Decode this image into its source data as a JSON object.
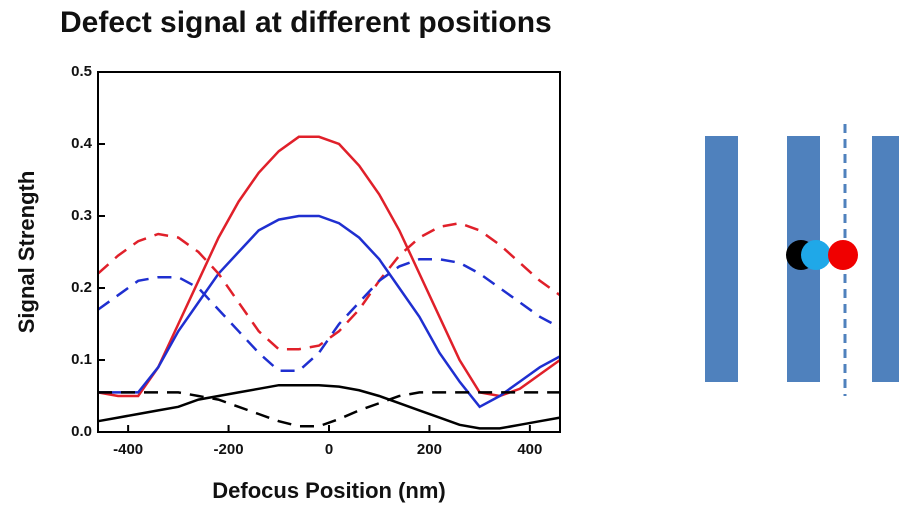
{
  "chart_data": {
    "type": "line",
    "title": "Defect signal at different positions",
    "x_label": "Defocus Position (nm)",
    "y_label": "Signal Strength",
    "x": [
      -460,
      -420,
      -380,
      -340,
      -300,
      -260,
      -220,
      -180,
      -140,
      -100,
      -60,
      -20,
      20,
      60,
      100,
      140,
      180,
      220,
      260,
      300,
      340,
      380,
      420,
      460
    ],
    "series": [
      {
        "color": "#e0202a",
        "dash": false,
        "values": [
          0.055,
          0.05,
          0.05,
          0.09,
          0.15,
          0.21,
          0.27,
          0.32,
          0.36,
          0.39,
          0.41,
          0.41,
          0.4,
          0.37,
          0.33,
          0.28,
          0.22,
          0.16,
          0.1,
          0.055,
          0.05,
          0.06,
          0.08,
          0.1
        ]
      },
      {
        "color": "#1f2fd0",
        "dash": false,
        "values": [
          0.055,
          0.055,
          0.055,
          0.09,
          0.14,
          0.18,
          0.22,
          0.25,
          0.28,
          0.295,
          0.3,
          0.3,
          0.29,
          0.27,
          0.24,
          0.2,
          0.16,
          0.11,
          0.07,
          0.035,
          0.05,
          0.07,
          0.09,
          0.105
        ]
      },
      {
        "color": "#e0202a",
        "dash": true,
        "values": [
          0.22,
          0.245,
          0.265,
          0.275,
          0.27,
          0.25,
          0.22,
          0.18,
          0.14,
          0.115,
          0.115,
          0.12,
          0.14,
          0.17,
          0.21,
          0.245,
          0.27,
          0.285,
          0.29,
          0.28,
          0.26,
          0.235,
          0.21,
          0.19
        ]
      },
      {
        "color": "#1f2fd0",
        "dash": true,
        "values": [
          0.17,
          0.19,
          0.21,
          0.215,
          0.215,
          0.2,
          0.17,
          0.14,
          0.11,
          0.085,
          0.085,
          0.11,
          0.15,
          0.18,
          0.21,
          0.23,
          0.24,
          0.24,
          0.235,
          0.22,
          0.2,
          0.18,
          0.16,
          0.145
        ]
      },
      {
        "color": "#000000",
        "dash": false,
        "values": [
          0.015,
          0.02,
          0.025,
          0.03,
          0.035,
          0.045,
          0.05,
          0.055,
          0.06,
          0.065,
          0.065,
          0.065,
          0.063,
          0.058,
          0.05,
          0.04,
          0.03,
          0.02,
          0.01,
          0.005,
          0.005,
          0.01,
          0.015,
          0.02
        ]
      },
      {
        "color": "#000000",
        "dash": true,
        "values": [
          0.055,
          0.055,
          0.055,
          0.055,
          0.055,
          0.05,
          0.045,
          0.035,
          0.025,
          0.015,
          0.008,
          0.008,
          0.018,
          0.03,
          0.04,
          0.05,
          0.055,
          0.055,
          0.055,
          0.055,
          0.055,
          0.055,
          0.055,
          0.055
        ]
      }
    ],
    "xlim": [
      -460,
      460
    ],
    "ylim": [
      0,
      0.5
    ],
    "xticks": [
      -400,
      -200,
      0,
      200,
      400
    ],
    "yticks": [
      {
        "value": 0,
        "label": "0.0"
      },
      0.1,
      0.2,
      0.3,
      0.4,
      0.5
    ]
  }
}
